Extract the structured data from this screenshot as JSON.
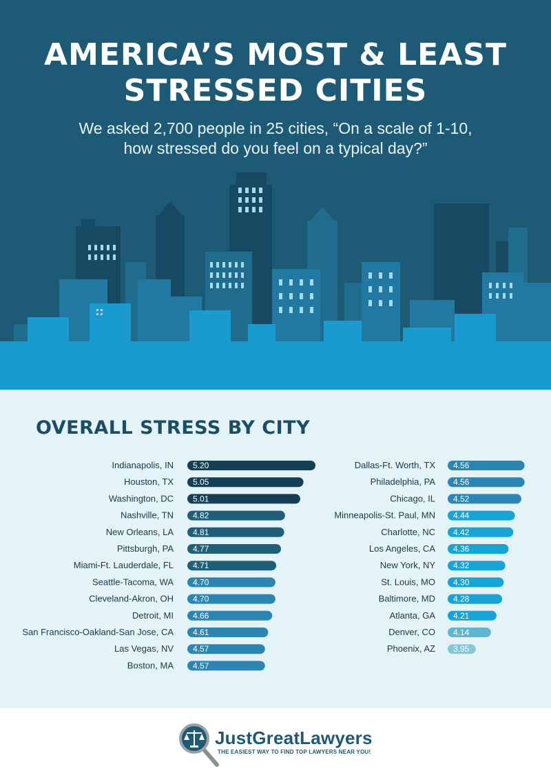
{
  "header": {
    "title_line1": "AMERICA’S MOST & LEAST",
    "title_line2": "STRESSED CITIES",
    "subtitle_line1": "We asked 2,700 people in 25 cities, “On a scale of 1-10,",
    "subtitle_line2": "how stressed do you feel on a typical day?”"
  },
  "chart_data": {
    "type": "bar",
    "orientation": "horizontal",
    "title": "OVERALL STRESS BY CITY",
    "columns": [
      {
        "categories": [
          "Indianapolis, IN",
          "Houston, TX",
          "Washington, DC",
          "Nashville, TN",
          "New Orleans, LA",
          "Pittsburgh, PA",
          "Miami-Ft. Lauderdale, FL",
          "Seattle-Tacoma, WA",
          "Cleveland-Akron, OH",
          "Detroit, MI",
          "San Francisco-Oakland-San Jose, CA",
          "Las Vegas, NV",
          "Boston, MA"
        ],
        "values": [
          5.2,
          5.05,
          5.01,
          4.82,
          4.81,
          4.77,
          4.71,
          4.7,
          4.7,
          4.66,
          4.61,
          4.57,
          4.57
        ],
        "value_labels": [
          "5.20",
          "5.05",
          "5.01",
          "4.82",
          "4.81",
          "4.77",
          "4.71",
          "4.70",
          "4.70",
          "4.66",
          "4.61",
          "4.57",
          "4.57"
        ]
      },
      {
        "categories": [
          "Dallas-Ft. Worth, TX",
          "Philadelphia, PA",
          "Chicago, IL",
          "Minneapolis-St. Paul, MN",
          "Charlotte, NC",
          "Los Angeles, CA",
          "New York, NY",
          "St. Louis, MO",
          "Baltimore, MD",
          "Atlanta, GA",
          "Denver, CO",
          "Phoenix, AZ"
        ],
        "values": [
          4.56,
          4.56,
          4.52,
          4.44,
          4.42,
          4.36,
          4.32,
          4.3,
          4.28,
          4.21,
          4.14,
          3.95
        ],
        "value_labels": [
          "4.56",
          "4.56",
          "4.52",
          "4.44",
          "4.42",
          "4.36",
          "4.32",
          "4.30",
          "4.28",
          "4.21",
          "4.14",
          "3.95"
        ]
      }
    ],
    "colors": {
      "darkest": "#143f55",
      "dark": "#1f5f7a",
      "mid": "#2b86b3",
      "light": "#16a3d6",
      "pale": "#5fb6d1",
      "palest": "#86c6d9"
    }
  },
  "footer": {
    "brand": "JustGreatLawyers",
    "tagline": "THE EASIEST WAY TO FIND TOP LAWYERS NEAR YOU!"
  }
}
